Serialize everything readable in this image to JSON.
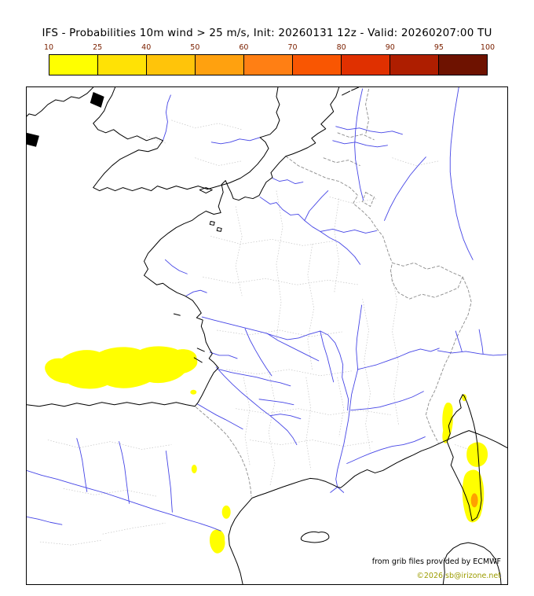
{
  "title": "IFS - Probabilities 10m wind > 25 m/s, Init: 20260131 12z - Valid: 20260207:00 TU",
  "legend": {
    "ticks": [
      "10",
      "25",
      "40",
      "50",
      "60",
      "70",
      "80",
      "90",
      "95",
      "100"
    ],
    "colors": [
      "#FFFF00",
      "#FFE205",
      "#FFC40A",
      "#FFA10F",
      "#FF7F14",
      "#F95602",
      "#E03000",
      "#AE1E00",
      "#6E1200"
    ],
    "tick_color": "#7B2000",
    "unit": "probability percent"
  },
  "map": {
    "colors": {
      "coastline": "#000000",
      "river": "#4545E6",
      "national_border": "#8A8A8A",
      "department_border": "#C4C4C4",
      "probability_10_fill": "#FFFF00",
      "probability_25_fill": "#FFA000",
      "frame": "#000000"
    },
    "probability_areas": [
      "Bay of Biscay yellow area",
      "small yellow patches off Spanish Mediterranean coast",
      "yellow patches around Corsica with small orange core"
    ]
  },
  "credits": {
    "source": "from grib files provided by ECMWF",
    "copyright": "©2026 sb@irizone.net",
    "copyright_color": "#9C9C00"
  }
}
